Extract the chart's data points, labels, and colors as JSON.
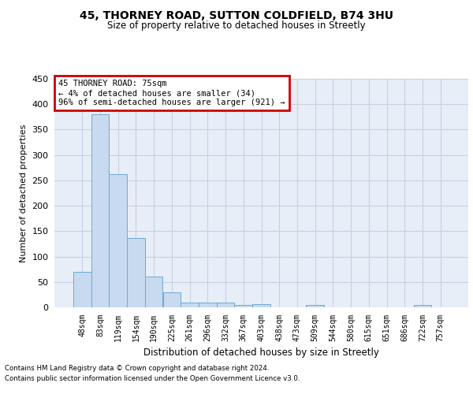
{
  "title_line1": "45, THORNEY ROAD, SUTTON COLDFIELD, B74 3HU",
  "title_line2": "Size of property relative to detached houses in Streetly",
  "xlabel": "Distribution of detached houses by size in Streetly",
  "ylabel": "Number of detached properties",
  "bar_labels": [
    "48sqm",
    "83sqm",
    "119sqm",
    "154sqm",
    "190sqm",
    "225sqm",
    "261sqm",
    "296sqm",
    "332sqm",
    "367sqm",
    "403sqm",
    "438sqm",
    "473sqm",
    "509sqm",
    "544sqm",
    "580sqm",
    "615sqm",
    "651sqm",
    "686sqm",
    "722sqm",
    "757sqm"
  ],
  "bar_values": [
    70,
    380,
    262,
    136,
    60,
    30,
    10,
    9,
    10,
    5,
    6,
    0,
    0,
    5,
    0,
    0,
    0,
    0,
    0,
    5,
    0
  ],
  "bar_color": "#c8daef",
  "bar_edge_color": "#6aaad4",
  "annotation_line1": "45 THORNEY ROAD: 75sqm",
  "annotation_line2": "← 4% of detached houses are smaller (34)",
  "annotation_line3": "96% of semi-detached houses are larger (921) →",
  "annotation_box_facecolor": "#ffffff",
  "annotation_box_edgecolor": "#cc0000",
  "ylim": [
    0,
    450
  ],
  "yticks": [
    0,
    50,
    100,
    150,
    200,
    250,
    300,
    350,
    400,
    450
  ],
  "bg_color": "#ffffff",
  "plot_bg_color": "#e8eef8",
  "grid_color": "#c8cfe0",
  "footer_line1": "Contains HM Land Registry data © Crown copyright and database right 2024.",
  "footer_line2": "Contains public sector information licensed under the Open Government Licence v3.0."
}
